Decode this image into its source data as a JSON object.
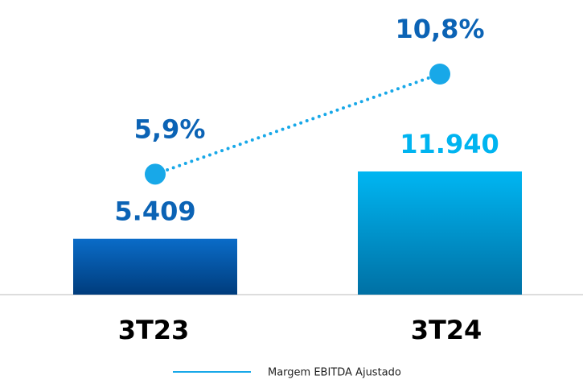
{
  "chart_data": {
    "type": "bar-line",
    "categories": [
      "3T23",
      "3T24"
    ],
    "series": [
      {
        "type": "bar",
        "colors": [
          "#0a5fb4",
          "#00b4f0"
        ],
        "values": [
          5409,
          11940
        ],
        "value_labels": [
          "5.409",
          "11.940"
        ]
      },
      {
        "type": "line",
        "name": "Margem EBITDA Ajustado",
        "color": "#18a8e8",
        "axis": "y2",
        "values": [
          5.9,
          10.8
        ],
        "value_labels": [
          "5,9%",
          "10,8%"
        ]
      }
    ],
    "legend": "bottom"
  }
}
